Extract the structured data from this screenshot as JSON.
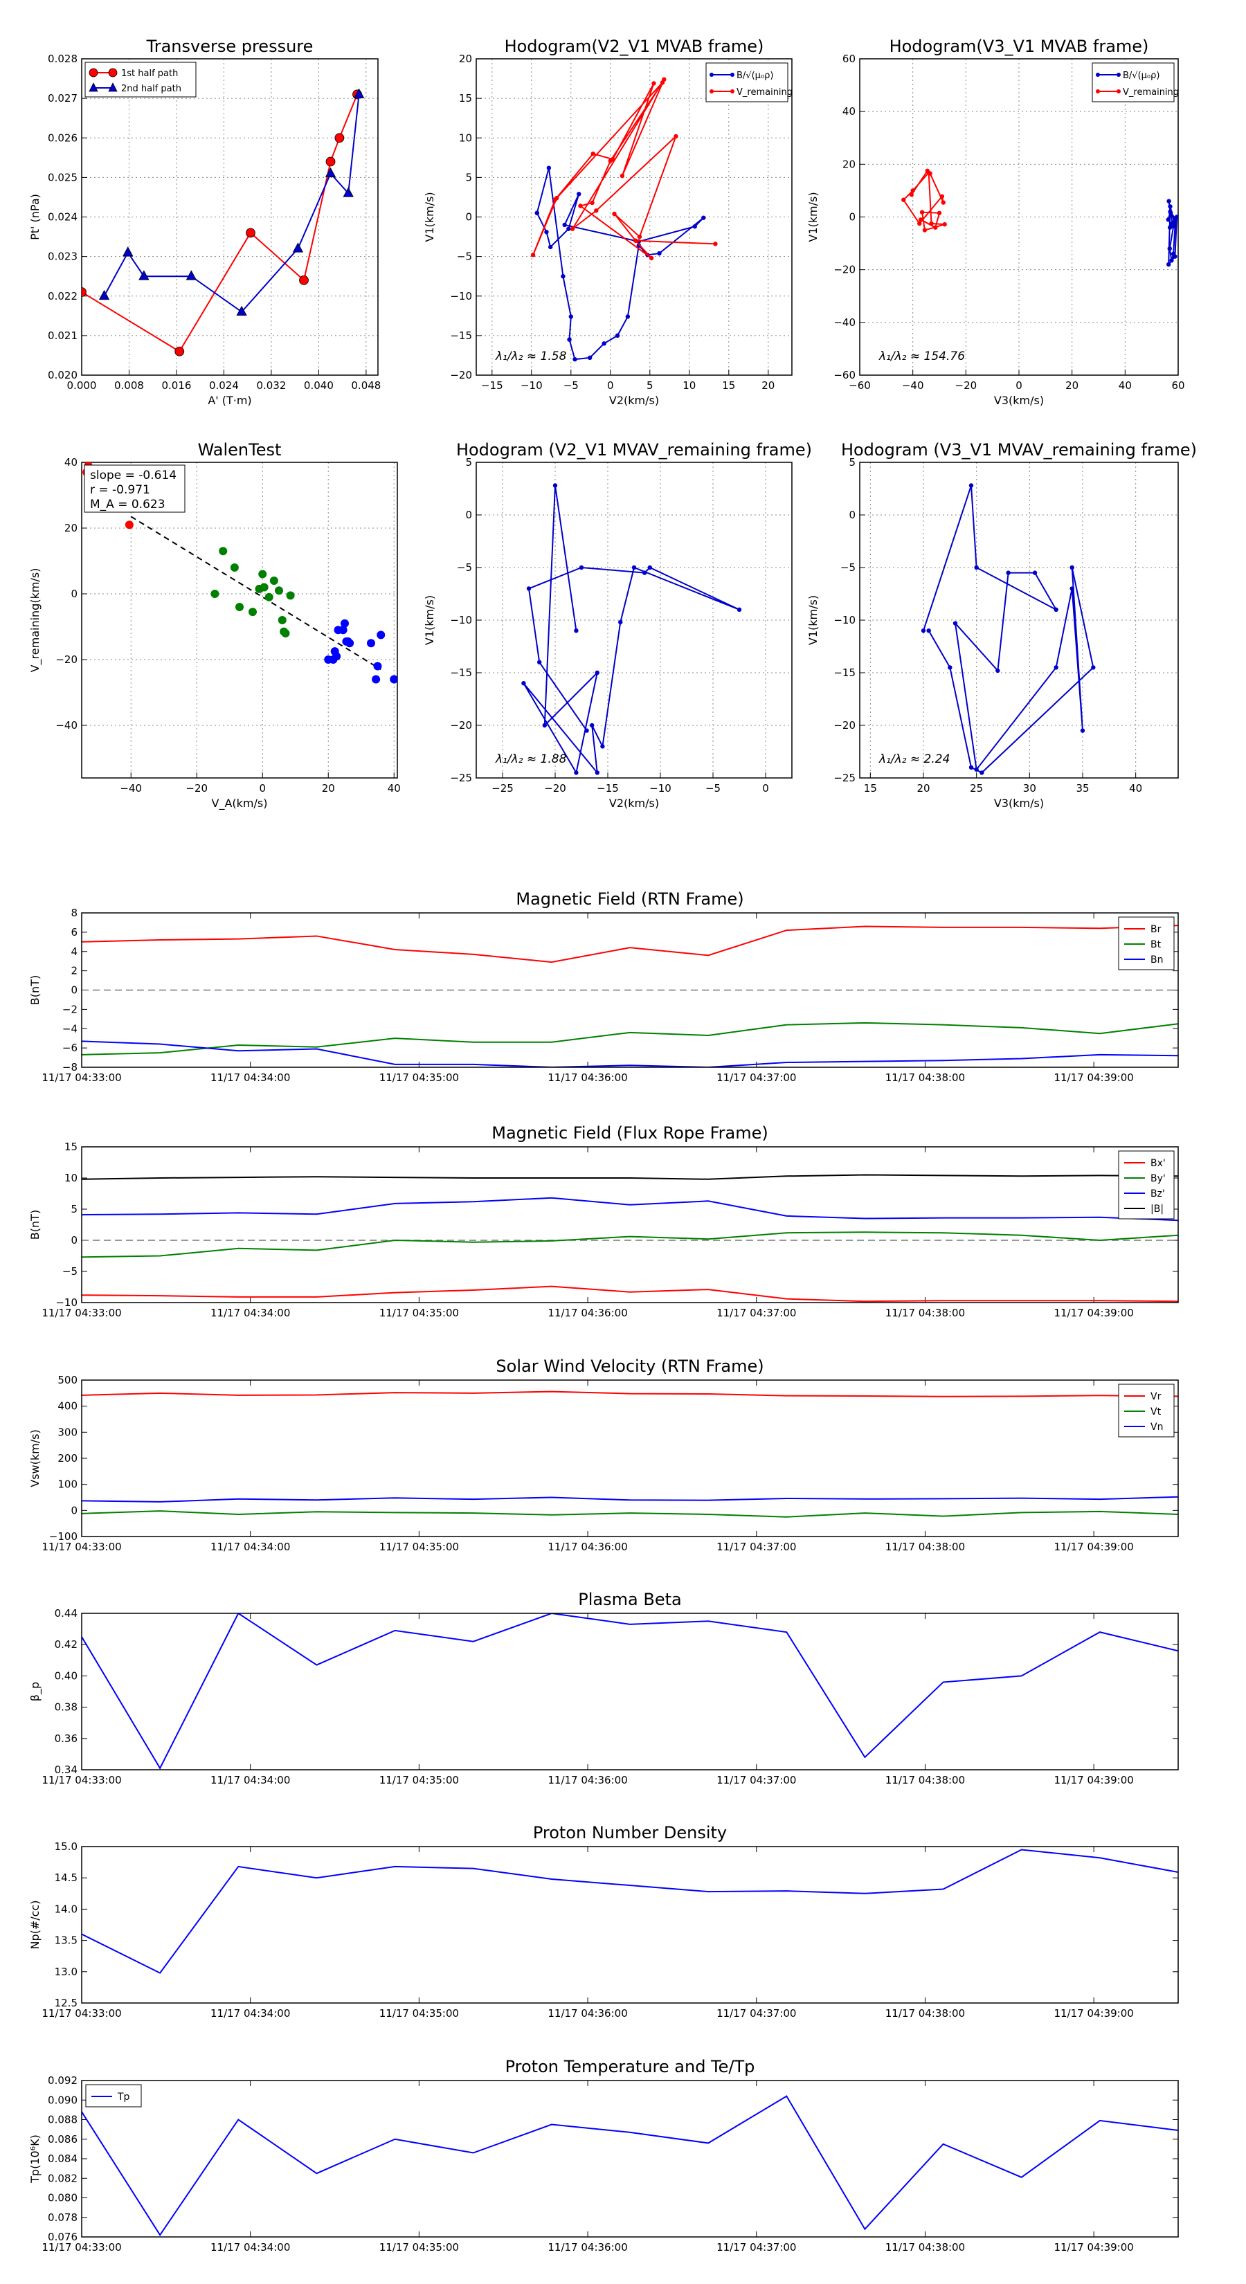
{
  "chart_data": [
    {
      "id": "transverse-pressure",
      "type": "scatter",
      "title": "Transverse pressure",
      "xlabel": "A' (T·m)",
      "ylabel": "Pt' (nPa)",
      "xlim": [
        0.0,
        0.05
      ],
      "ylim": [
        0.02,
        0.028
      ],
      "xticks": [
        "0.000",
        "0.008",
        "0.016",
        "0.024",
        "0.032",
        "0.040",
        "0.048"
      ],
      "yticks": [
        "0.020",
        "0.021",
        "0.022",
        "0.023",
        "0.024",
        "0.025",
        "0.026",
        "0.027",
        "0.028"
      ],
      "legend": "top-left",
      "series": [
        {
          "name": "1st half path",
          "color": "#ff0000",
          "marker": "circle",
          "x": [
            0.0,
            0.0165,
            0.0285,
            0.0375,
            0.042,
            0.0435,
            0.0465
          ],
          "y": [
            0.0221,
            0.0206,
            0.0236,
            0.0224,
            0.0254,
            0.026,
            0.0271
          ]
        },
        {
          "name": "2nd half path",
          "color": "#0000cc",
          "marker": "triangle",
          "x": [
            0.0038,
            0.0078,
            0.0105,
            0.0185,
            0.027,
            0.0365,
            0.042,
            0.045,
            0.0468
          ],
          "y": [
            0.022,
            0.0231,
            0.0225,
            0.0225,
            0.0216,
            0.0232,
            0.0251,
            0.0246,
            0.0271
          ]
        }
      ]
    },
    {
      "id": "hodogram-v2-v1-mvab",
      "type": "line",
      "title": "Hodogram(V2_V1 MVAB frame)",
      "xlabel": "V2(km/s)",
      "ylabel": "V1(km/s)",
      "xlim": [
        -17,
        23
      ],
      "ylim": [
        -20,
        20
      ],
      "xticks": [
        "−15",
        "−10",
        "−5",
        "0",
        "5",
        "10",
        "15",
        "20"
      ],
      "yticks": [
        "−20",
        "−15",
        "−10",
        "−5",
        "0",
        "5",
        "10",
        "15",
        "20"
      ],
      "annotation": "λ₁/λ₂ ≈ 1.58",
      "legend": "top-right",
      "series": [
        {
          "name": "B/√(μ₀ρ)",
          "color": "#0000cc",
          "x": [
            -9.3,
            -8.1,
            -7.6,
            -5.3,
            -4.0,
            -5.8,
            3.6,
            10.7,
            11.8,
            6.2,
            4.7,
            3.6,
            2.2,
            0.9,
            -0.8,
            -2.6,
            -4.5,
            -5.2,
            -5.0,
            -6.0,
            -7.8,
            -9.3
          ],
          "y": [
            0.5,
            -1.9,
            -3.8,
            -1.5,
            2.9,
            -1.0,
            -3.1,
            -1.2,
            -0.1,
            -4.6,
            -4.8,
            -3.6,
            -12.6,
            -15.0,
            -16.0,
            -17.8,
            -18.0,
            -15.5,
            -12.6,
            -7.5,
            6.2,
            0.5
          ]
        },
        {
          "name": "V_remaining",
          "color": "#ff0000",
          "x": [
            -9.8,
            -7.0,
            -2.2,
            0.3,
            5.5,
            1.5,
            6.8,
            -4.8,
            -1.8,
            8.3,
            3.7,
            0.5,
            3.2,
            13.3,
            3.2,
            5.2,
            -3.8,
            -2.3,
            0.0,
            6.6,
            -6.8,
            -9.8
          ],
          "y": [
            -4.8,
            2.2,
            8.0,
            7.3,
            16.9,
            5.2,
            17.4,
            -1.5,
            0.8,
            10.2,
            -2.5,
            0.4,
            -3.0,
            -3.4,
            -3.0,
            -5.2,
            1.4,
            1.8,
            7.1,
            17.0,
            2.4,
            -4.8
          ]
        }
      ]
    },
    {
      "id": "hodogram-v3-v1-mvab",
      "type": "line",
      "title": "Hodogram(V3_V1 MVAB frame)",
      "xlabel": "V3(km/s)",
      "ylabel": "V1(km/s)",
      "xlim": [
        -60,
        60
      ],
      "ylim": [
        -60,
        60
      ],
      "xticks": [
        "−60",
        "−40",
        "−20",
        "0",
        "20",
        "40",
        "60"
      ],
      "yticks": [
        "−60",
        "−40",
        "−20",
        "0",
        "20",
        "40",
        "60"
      ],
      "annotation": "λ₁/λ₂ ≈ 154.76",
      "legend": "top-right",
      "series": [
        {
          "name": "B/√(μ₀ρ)",
          "color": "#0000cc",
          "x": [
            56.5,
            57.0,
            56.3,
            58.0,
            57.2,
            59.0,
            58.2,
            57.5,
            56.8,
            58.5,
            57.0,
            56.4,
            58.8,
            59.5,
            57.6,
            56.9
          ],
          "y": [
            6.0,
            2.0,
            -1.0,
            -3.5,
            1.5,
            -0.5,
            -14.0,
            -16.5,
            -12.0,
            -2.0,
            4.0,
            -18.0,
            -15.0,
            0.0,
            -2.5,
            -4.0
          ]
        },
        {
          "name": "V_remaining",
          "color": "#ff0000",
          "x": [
            -40.5,
            -34.5,
            -33.5,
            -28.5,
            -29.0,
            -37.5,
            -43.5,
            -40.0,
            -34.0,
            -33.0,
            -28.0,
            -35.5,
            -36.5,
            -30.0,
            -31.5,
            -37.0
          ],
          "y": [
            8.5,
            17.5,
            16.5,
            5.5,
            7.8,
            -2.5,
            6.5,
            10.0,
            16.8,
            -2.5,
            -2.8,
            -5.0,
            1.8,
            1.5,
            -4.0,
            -1.0
          ]
        }
      ]
    },
    {
      "id": "walen-test",
      "type": "scatter",
      "title": "WalenTest",
      "xlabel": "V_A(km/s)",
      "ylabel": "V_remaining(km/s)",
      "xlim": [
        -55,
        41
      ],
      "ylim": [
        -56,
        40
      ],
      "xticks": [
        "−40",
        "−20",
        "0",
        "20",
        "40"
      ],
      "yticks": [
        "−40",
        "−20",
        "0",
        "20",
        "40"
      ],
      "fit_line": {
        "x": [
          -40,
          36
        ],
        "y": [
          23.5,
          -23.0
        ]
      },
      "stats": [
        "slope = -0.614",
        "r = -0.971",
        "M_A = 0.623"
      ],
      "series": [
        {
          "name": "red",
          "color": "#ff0000",
          "x": [
            -40.5,
            -53.5,
            -53.0,
            -53.0
          ],
          "y": [
            21.0,
            37.0,
            39.0,
            35.0
          ]
        },
        {
          "name": "green",
          "color": "#008000",
          "x": [
            -12.0,
            -14.5,
            -8.5,
            -7.0,
            -3.0,
            -1.0,
            0.0,
            0.5,
            2.0,
            3.5,
            5.0,
            6.0,
            6.5,
            7.0,
            8.5
          ],
          "y": [
            13.0,
            0.0,
            8.0,
            -4.0,
            -5.5,
            1.5,
            6.0,
            2.0,
            -1.0,
            4.0,
            1.0,
            -8.0,
            -11.5,
            -12.0,
            -0.5
          ]
        },
        {
          "name": "blue",
          "color": "#0000ff",
          "x": [
            21.5,
            22.0,
            23.0,
            24.5,
            25.0,
            25.5,
            26.0,
            26.5,
            33.0,
            34.5,
            36.0,
            40.0,
            20.0,
            22.5,
            35.0
          ],
          "y": [
            -20.0,
            -17.5,
            -11.0,
            -11.0,
            -9.0,
            -14.5,
            -14.5,
            -15.0,
            -15.0,
            -26.0,
            -12.5,
            -26.0,
            -20.0,
            -19.0,
            -22.0
          ]
        }
      ]
    },
    {
      "id": "hodogram-v2-v1-mvav",
      "type": "line",
      "title": "Hodogram (V2_V1 MVAV_remaining frame)",
      "xlabel": "V2(km/s)",
      "ylabel": "V1(km/s)",
      "xlim": [
        -27.5,
        2.5
      ],
      "ylim": [
        -25,
        5
      ],
      "xticks": [
        "−25",
        "−20",
        "−15",
        "−10",
        "−5",
        "0"
      ],
      "yticks": [
        "−25",
        "−20",
        "−15",
        "−10",
        "−5",
        "0",
        "5"
      ],
      "annotation": "λ₁/λ₂ ≈ 1.88",
      "series": [
        {
          "name": "hodogram",
          "color": "#0000cc",
          "x": [
            -18.0,
            -20.0,
            -21.0,
            -16.0,
            -18.0,
            -23.0,
            -16.0,
            -16.5,
            -15.5,
            -13.8,
            -12.5,
            -2.5,
            -11.0,
            -11.5,
            -17.5,
            -22.5,
            -21.5,
            -17.0
          ],
          "y": [
            -11.0,
            2.8,
            -20.0,
            -15.0,
            -24.5,
            -16.0,
            -24.5,
            -20.0,
            -22.0,
            -10.2,
            -5.0,
            -9.0,
            -5.0,
            -5.5,
            -5.0,
            -7.0,
            -14.0,
            -20.5
          ]
        }
      ]
    },
    {
      "id": "hodogram-v3-v1-mvav",
      "type": "line",
      "title": "Hodogram (V3_V1 MVAV_remaining frame)",
      "xlabel": "V3(km/s)",
      "ylabel": "V1(km/s)",
      "xlim": [
        14,
        44
      ],
      "ylim": [
        -25,
        5
      ],
      "xticks": [
        "15",
        "20",
        "25",
        "30",
        "35",
        "40"
      ],
      "yticks": [
        "−25",
        "−20",
        "−15",
        "−10",
        "−5",
        "0",
        "5"
      ],
      "annotation": "λ₁/λ₂ ≈ 2.24",
      "series": [
        {
          "name": "hodogram",
          "color": "#0000cc",
          "x": [
            20.0,
            24.5,
            25.0,
            32.5,
            30.5,
            28.0,
            27.0,
            23.0,
            25.0,
            32.5,
            34.0,
            35.0,
            34.0,
            36.0,
            25.5,
            24.5,
            22.5,
            20.5
          ],
          "y": [
            -11.0,
            2.8,
            -5.0,
            -9.0,
            -5.5,
            -5.5,
            -14.8,
            -10.3,
            -24.2,
            -14.5,
            -7.0,
            -20.5,
            -5.0,
            -14.5,
            -24.5,
            -24.0,
            -14.5,
            -11.0
          ]
        }
      ]
    },
    {
      "id": "magnetic-field-rtn",
      "type": "line",
      "title": "Magnetic Field (RTN Frame)",
      "xlabel": "",
      "ylabel": "B(nT)",
      "ylim": [
        -8,
        8
      ],
      "yticks": [
        "−8",
        "−6",
        "−4",
        "−2",
        "0",
        "2",
        "4",
        "6",
        "8"
      ],
      "xticks": [
        "11/17 04:33:00",
        "11/17 04:34:00",
        "11/17 04:35:00",
        "11/17 04:36:00",
        "11/17 04:37:00",
        "11/17 04:38:00",
        "11/17 04:39:00"
      ],
      "zero_line": true,
      "legend": "top-right",
      "series": [
        {
          "name": "Br",
          "color": "#ff0000",
          "values": [
            5.0,
            5.2,
            5.3,
            5.6,
            4.2,
            3.7,
            2.9,
            4.4,
            3.6,
            6.2,
            6.6,
            6.5,
            6.5,
            6.4,
            6.7
          ]
        },
        {
          "name": "Bt",
          "color": "#008000",
          "values": [
            -6.7,
            -6.5,
            -5.7,
            -5.9,
            -5.0,
            -5.4,
            -5.4,
            -4.4,
            -4.7,
            -3.6,
            -3.4,
            -3.6,
            -3.9,
            -4.5,
            -3.5
          ]
        },
        {
          "name": "Bn",
          "color": "#0000ff",
          "values": [
            -5.3,
            -5.6,
            -6.3,
            -6.1,
            -7.7,
            -7.7,
            -8.0,
            -7.8,
            -8.0,
            -7.5,
            -7.4,
            -7.3,
            -7.1,
            -6.7,
            -6.8
          ]
        }
      ]
    },
    {
      "id": "magnetic-field-flux-rope",
      "type": "line",
      "title": "Magnetic Field (Flux Rope Frame)",
      "xlabel": "",
      "ylabel": "B(nT)",
      "ylim": [
        -10,
        15
      ],
      "yticks": [
        "−10",
        "−5",
        "0",
        "5",
        "10",
        "15"
      ],
      "xticks": [
        "11/17 04:33:00",
        "11/17 04:34:00",
        "11/17 04:35:00",
        "11/17 04:36:00",
        "11/17 04:37:00",
        "11/17 04:38:00",
        "11/17 04:39:00"
      ],
      "zero_line": true,
      "legend": "top-right",
      "series": [
        {
          "name": "Bx'",
          "color": "#ff0000",
          "values": [
            -8.8,
            -8.9,
            -9.1,
            -9.1,
            -8.4,
            -8.0,
            -7.4,
            -8.3,
            -7.9,
            -9.4,
            -9.8,
            -9.7,
            -9.7,
            -9.7,
            -9.8
          ]
        },
        {
          "name": "By'",
          "color": "#008000",
          "values": [
            -2.7,
            -2.5,
            -1.3,
            -1.6,
            0.0,
            -0.3,
            -0.1,
            0.6,
            0.2,
            1.2,
            1.3,
            1.2,
            0.8,
            0.0,
            0.8
          ]
        },
        {
          "name": "Bz'",
          "color": "#0000ff",
          "values": [
            4.1,
            4.2,
            4.4,
            4.2,
            5.9,
            6.2,
            6.8,
            5.7,
            6.3,
            3.9,
            3.5,
            3.6,
            3.6,
            3.7,
            3.2
          ]
        },
        {
          "name": "|B|",
          "color": "#000000",
          "values": [
            9.8,
            10.0,
            10.1,
            10.2,
            10.1,
            10.0,
            10.0,
            10.0,
            9.8,
            10.3,
            10.5,
            10.4,
            10.3,
            10.4,
            10.3
          ]
        }
      ]
    },
    {
      "id": "solar-wind-velocity",
      "type": "line",
      "title": "Solar Wind Velocity (RTN Frame)",
      "xlabel": "",
      "ylabel": "Vsw(km/s)",
      "ylim": [
        -100,
        500
      ],
      "yticks": [
        "−100",
        "0",
        "100",
        "200",
        "300",
        "400",
        "500"
      ],
      "xticks": [
        "11/17 04:33:00",
        "11/17 04:34:00",
        "11/17 04:35:00",
        "11/17 04:36:00",
        "11/17 04:37:00",
        "11/17 04:38:00",
        "11/17 04:39:00"
      ],
      "legend": "top-right",
      "series": [
        {
          "name": "Vr",
          "color": "#ff0000",
          "values": [
            442,
            450,
            442,
            443,
            452,
            450,
            456,
            448,
            447,
            440,
            439,
            437,
            438,
            441,
            438
          ]
        },
        {
          "name": "Vt",
          "color": "#008000",
          "values": [
            -12,
            -2,
            -15,
            -5,
            -8,
            -10,
            -17,
            -10,
            -15,
            -25,
            -10,
            -22,
            -8,
            -4,
            -15
          ]
        },
        {
          "name": "Vn",
          "color": "#0000ff",
          "values": [
            37,
            33,
            44,
            40,
            48,
            43,
            50,
            40,
            39,
            46,
            44,
            45,
            47,
            43,
            52
          ]
        }
      ]
    },
    {
      "id": "plasma-beta",
      "type": "line",
      "title": "Plasma Beta",
      "xlabel": "",
      "ylabel": "β_p",
      "ylim": [
        0.34,
        0.44
      ],
      "yticks": [
        "0.34",
        "0.36",
        "0.38",
        "0.40",
        "0.42",
        "0.44"
      ],
      "xticks": [
        "11/17 04:33:00",
        "11/17 04:34:00",
        "11/17 04:35:00",
        "11/17 04:36:00",
        "11/17 04:37:00",
        "11/17 04:38:00",
        "11/17 04:39:00"
      ],
      "series": [
        {
          "name": "beta",
          "color": "#0000ff",
          "values": [
            0.425,
            0.341,
            0.44,
            0.407,
            0.429,
            0.422,
            0.44,
            0.433,
            0.435,
            0.428,
            0.348,
            0.396,
            0.4,
            0.428,
            0.416
          ]
        }
      ]
    },
    {
      "id": "proton-number-density",
      "type": "line",
      "title": "Proton Number Density",
      "xlabel": "",
      "ylabel": "Np(#/cc)",
      "ylim": [
        12.5,
        15.0
      ],
      "yticks": [
        "12.5",
        "13.0",
        "13.5",
        "14.0",
        "14.5",
        "15.0"
      ],
      "xticks": [
        "11/17 04:33:00",
        "11/17 04:34:00",
        "11/17 04:35:00",
        "11/17 04:36:00",
        "11/17 04:37:00",
        "11/17 04:38:00",
        "11/17 04:39:00"
      ],
      "series": [
        {
          "name": "Np",
          "color": "#0000ff",
          "values": [
            13.6,
            12.98,
            14.68,
            14.5,
            14.68,
            14.65,
            14.48,
            14.38,
            14.28,
            14.29,
            14.25,
            14.32,
            14.95,
            14.82,
            14.59
          ]
        }
      ]
    },
    {
      "id": "proton-temperature",
      "type": "line",
      "title": "Proton Temperature and Te/Tp",
      "xlabel": "",
      "ylabel": "Tp(10⁶K)",
      "ylim": [
        0.076,
        0.092
      ],
      "yticks": [
        "0.076",
        "0.078",
        "0.080",
        "0.082",
        "0.084",
        "0.086",
        "0.088",
        "0.090",
        "0.092"
      ],
      "xticks": [
        "11/17 04:33:00",
        "11/17 04:34:00",
        "11/17 04:35:00",
        "11/17 04:36:00",
        "11/17 04:37:00",
        "11/17 04:38:00",
        "11/17 04:39:00"
      ],
      "legend": "top-left",
      "series": [
        {
          "name": "Tp",
          "color": "#0000ff",
          "values": [
            0.0888,
            0.0762,
            0.088,
            0.0825,
            0.086,
            0.0846,
            0.0875,
            0.0867,
            0.0856,
            0.0904,
            0.0768,
            0.0855,
            0.0821,
            0.0879,
            0.0869
          ]
        }
      ]
    }
  ]
}
